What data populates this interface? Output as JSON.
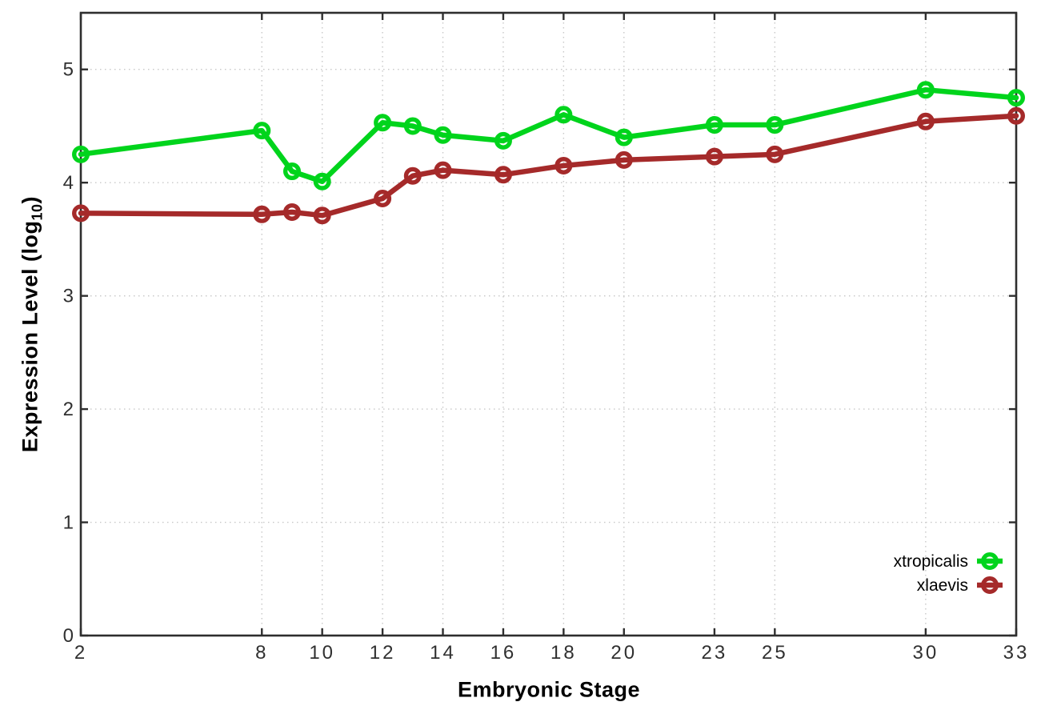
{
  "figure": {
    "background": "#ffffff",
    "axis_color": "#2e2e2e",
    "grid_color": "#c8c8c8",
    "tick_label_color": "#303030"
  },
  "titles": {
    "xlabel": "Embryonic Stage",
    "ylabel_main": "Expression Level (log",
    "ylabel_sub": "10",
    "ylabel_close": ")"
  },
  "chart_data": {
    "type": "line",
    "title": "",
    "xlabel": "Embryonic Stage",
    "ylabel": "Expression Level (log10)",
    "x": [
      2,
      8,
      9,
      10,
      12,
      13,
      14,
      16,
      18,
      20,
      23,
      25,
      30,
      33
    ],
    "series": [
      {
        "name": "xtropicalis",
        "color": "#00d41c",
        "marker": "open-circle",
        "values": [
          4.25,
          4.46,
          4.1,
          4.01,
          4.53,
          4.5,
          4.42,
          4.37,
          4.6,
          4.4,
          4.51,
          4.51,
          4.82,
          4.75
        ]
      },
      {
        "name": "xlaevis",
        "color": "#a52a2a",
        "marker": "open-circle",
        "values": [
          3.73,
          3.72,
          3.74,
          3.71,
          3.86,
          4.06,
          4.11,
          4.07,
          4.15,
          4.2,
          4.23,
          4.25,
          4.54,
          4.59
        ]
      }
    ],
    "xticks": [
      2,
      8,
      10,
      12,
      14,
      16,
      18,
      20,
      23,
      25,
      30,
      33
    ],
    "yticks": [
      0,
      1,
      2,
      3,
      4,
      5
    ],
    "xlim": [
      2,
      33
    ],
    "ylim": [
      0,
      5.5
    ],
    "grid": true,
    "grid_style": "dotted",
    "legend_position": "inside-right-lower",
    "legend_order": [
      "xtropicalis",
      "xlaevis"
    ]
  }
}
